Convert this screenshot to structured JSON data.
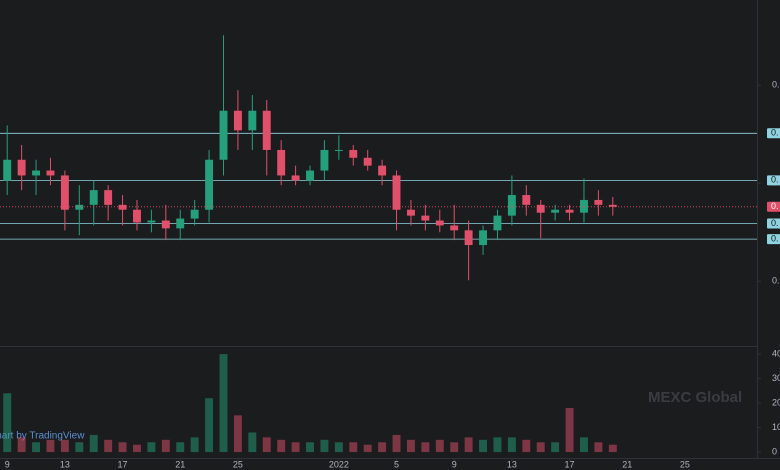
{
  "chart_data": {
    "type": "candlestick",
    "x": [
      9,
      10,
      11,
      12,
      13,
      14,
      15,
      16,
      17,
      18,
      19,
      20,
      21,
      22,
      23,
      24,
      25,
      26,
      27,
      28,
      29,
      30,
      31,
      32,
      33,
      34,
      35,
      36,
      37,
      38,
      39,
      40,
      41,
      42,
      43,
      44,
      45,
      46,
      47,
      48,
      49,
      50,
      51
    ],
    "open": [
      0.203,
      0.224,
      0.208,
      0.213,
      0.208,
      0.173,
      0.178,
      0.193,
      0.178,
      0.173,
      0.16,
      0.162,
      0.154,
      0.164,
      0.173,
      0.224,
      0.274,
      0.254,
      0.274,
      0.234,
      0.208,
      0.203,
      0.213,
      0.234,
      0.234,
      0.226,
      0.218,
      0.208,
      0.173,
      0.167,
      0.162,
      0.157,
      0.152,
      0.137,
      0.152,
      0.167,
      0.188,
      0.178,
      0.17,
      0.173,
      0.17,
      0.183,
      0.178
    ],
    "high": [
      0.259,
      0.239,
      0.224,
      0.226,
      0.213,
      0.198,
      0.203,
      0.198,
      0.188,
      0.183,
      0.173,
      0.178,
      0.173,
      0.183,
      0.234,
      0.351,
      0.295,
      0.29,
      0.285,
      0.244,
      0.218,
      0.218,
      0.244,
      0.249,
      0.239,
      0.234,
      0.224,
      0.213,
      0.183,
      0.178,
      0.173,
      0.178,
      0.162,
      0.157,
      0.173,
      0.208,
      0.198,
      0.183,
      0.178,
      0.178,
      0.205,
      0.193,
      0.186
    ],
    "low": [
      0.188,
      0.193,
      0.188,
      0.198,
      0.152,
      0.147,
      0.157,
      0.162,
      0.157,
      0.152,
      0.15,
      0.142,
      0.142,
      0.157,
      0.16,
      0.208,
      0.234,
      0.234,
      0.208,
      0.198,
      0.198,
      0.198,
      0.203,
      0.224,
      0.218,
      0.213,
      0.198,
      0.152,
      0.157,
      0.152,
      0.15,
      0.142,
      0.101,
      0.127,
      0.142,
      0.157,
      0.167,
      0.144,
      0.162,
      0.162,
      0.16,
      0.167,
      0.167
    ],
    "close": [
      0.224,
      0.208,
      0.213,
      0.208,
      0.173,
      0.178,
      0.193,
      0.178,
      0.173,
      0.16,
      0.162,
      0.154,
      0.164,
      0.173,
      0.224,
      0.274,
      0.254,
      0.274,
      0.234,
      0.208,
      0.203,
      0.213,
      0.234,
      0.234,
      0.226,
      0.218,
      0.208,
      0.173,
      0.167,
      0.162,
      0.157,
      0.152,
      0.137,
      0.152,
      0.167,
      0.188,
      0.178,
      0.17,
      0.173,
      0.17,
      0.183,
      0.178,
      0.176
    ],
    "volume": [
      24,
      6,
      4,
      5,
      5,
      4,
      7,
      5,
      4,
      3,
      4,
      5,
      4,
      6,
      22,
      40,
      15,
      8,
      6,
      5,
      4,
      4,
      5,
      4,
      4,
      3,
      4,
      7,
      5,
      4,
      5,
      4,
      6,
      5,
      6,
      6,
      5,
      4,
      4,
      18,
      6,
      4,
      3
    ],
    "up_color": "#26a07a",
    "down_color": "#e0506a",
    "xlim": [
      8.5,
      61
    ],
    "xticks": [
      9,
      13,
      17,
      21,
      25,
      {
        "value": 32,
        "label": "2022"
      },
      {
        "value": 36,
        "label": "5"
      },
      {
        "value": 40,
        "label": "9"
      },
      {
        "value": 44,
        "label": "13"
      },
      {
        "value": 48,
        "label": "17"
      },
      {
        "value": 52,
        "label": "21"
      },
      {
        "value": 56,
        "label": "25"
      }
    ],
    "ylim": [
      0.035,
      0.387
    ],
    "yticks": [
      {
        "value": 0.3,
        "label": "0."
      },
      {
        "value": 0.2,
        "label": "0."
      },
      {
        "value": 0.1,
        "label": "0."
      }
    ],
    "levels": [
      {
        "value": 0.251,
        "label": "0."
      },
      {
        "value": 0.203,
        "label": "0."
      },
      {
        "value": 0.159,
        "label": "0."
      },
      {
        "value": 0.143,
        "label": "0."
      }
    ],
    "last_price": {
      "value": 0.176,
      "label": "0."
    },
    "volume_ylim": [
      -1.2,
      42.5
    ],
    "volume_yticks": [
      40,
      30,
      20,
      10,
      0
    ],
    "watermark": "MEXC Global",
    "attribution": "Chart by TradingView"
  }
}
